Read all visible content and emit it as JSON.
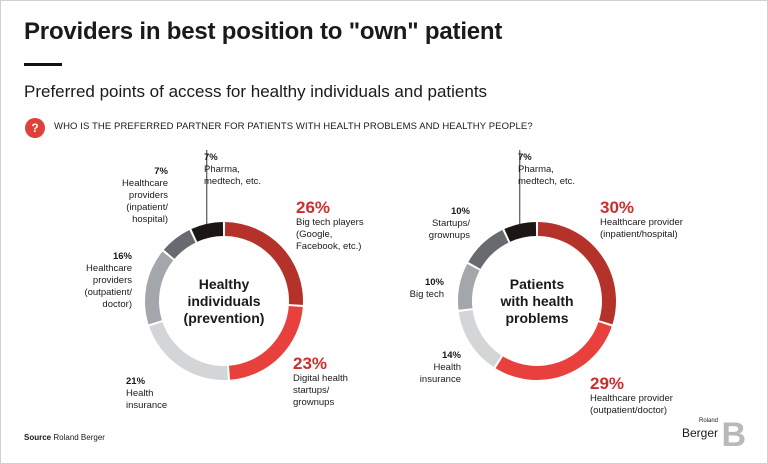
{
  "title": "Providers in best position to \"own\" patient",
  "subtitle": "Preferred points of access for healthy individuals and patients",
  "question_icon": "?",
  "question": "WHO IS THE PREFERRED PARTNER FOR PATIENTS WITH HEALTH PROBLEMS AND HEALTHY PEOPLE?",
  "source_label": "Source",
  "source_value": "Roland Berger",
  "logo": {
    "small": "Roland",
    "big": "Berger",
    "mark": "B"
  },
  "colors": {
    "dark_red": "#b5322a",
    "red": "#e8413d",
    "light_gray": "#d3d5d7",
    "mid_gray": "#a3a6aa",
    "dark_gray": "#676a6e",
    "black": "#1c1714"
  },
  "chart_data": [
    {
      "type": "pie",
      "donut": true,
      "center_label": [
        "Healthy",
        "individuals",
        "(prevention)"
      ],
      "slices": [
        {
          "value": 26,
          "pct": "26%",
          "label": [
            "Big tech players",
            "(Google,",
            "Facebook, etc.)"
          ],
          "color": "#b5322a"
        },
        {
          "value": 23,
          "pct": "23%",
          "label": [
            "Digital health",
            "startups/",
            "grownups"
          ],
          "color": "#e8413d"
        },
        {
          "value": 21,
          "pct": "21%",
          "label": [
            "Health",
            "insurance"
          ],
          "color": "#d3d5d7"
        },
        {
          "value": 16,
          "pct": "16%",
          "label": [
            "Healthcare",
            "providers",
            "(outpatient/",
            "doctor)"
          ],
          "color": "#a3a6aa"
        },
        {
          "value": 7,
          "pct": "7%",
          "label": [
            "Healthcare",
            "providers",
            "(inpatient/",
            "hospital)"
          ],
          "color": "#676a6e"
        },
        {
          "value": 7,
          "pct": "7%",
          "label": [
            "Pharma,",
            "medtech, etc."
          ],
          "color": "#1c1714"
        }
      ]
    },
    {
      "type": "pie",
      "donut": true,
      "center_label": [
        "Patients",
        "with health",
        "problems"
      ],
      "slices": [
        {
          "value": 30,
          "pct": "30%",
          "label": [
            "Healthcare provider",
            "(inpatient/hospital)"
          ],
          "color": "#b5322a"
        },
        {
          "value": 29,
          "pct": "29%",
          "label": [
            "Healthcare provider",
            "(outpatient/doctor)"
          ],
          "color": "#e8413d"
        },
        {
          "value": 14,
          "pct": "14%",
          "label": [
            "Health",
            "insurance"
          ],
          "color": "#d3d5d7"
        },
        {
          "value": 10,
          "pct": "10%",
          "label": [
            "Big tech"
          ],
          "color": "#a3a6aa"
        },
        {
          "value": 10,
          "pct": "10%",
          "label": [
            "Startups/",
            "grownups"
          ],
          "color": "#676a6e"
        },
        {
          "value": 7,
          "pct": "7%",
          "label": [
            "Pharma,",
            "medtech, etc."
          ],
          "color": "#1c1714"
        }
      ]
    }
  ]
}
